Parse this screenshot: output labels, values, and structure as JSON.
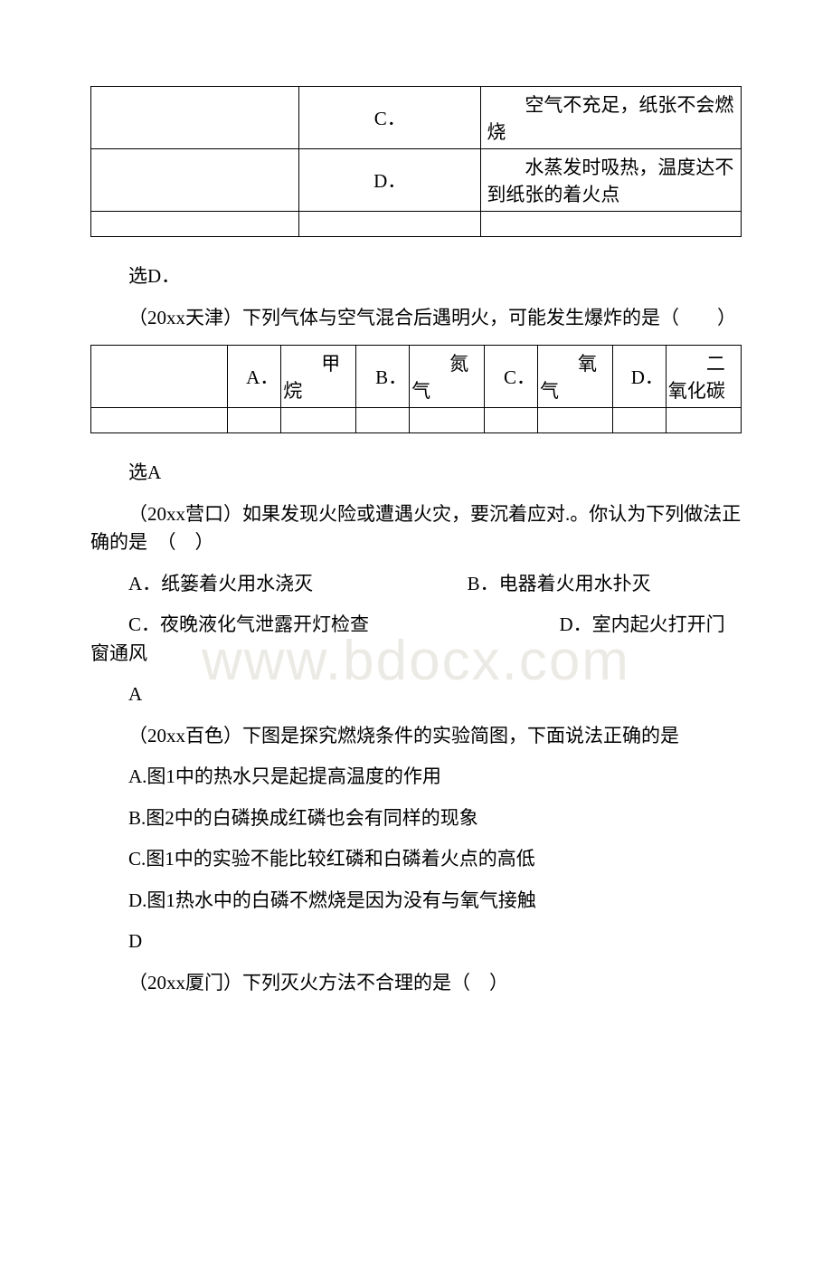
{
  "watermark": "www.bdocx.com",
  "table1": {
    "rows": [
      {
        "label": "C．",
        "text": "空气不充足，纸张不会燃烧"
      },
      {
        "label": "D．",
        "text": "水蒸发时吸热，温度达不到纸张的着火点"
      }
    ]
  },
  "answers": {
    "a1": "选D．",
    "a2": "选A",
    "a3": "A",
    "a4": "D"
  },
  "q1": {
    "stem": "（20xx天津）下列气体与空气混合后遇明火，可能发生爆炸的是（　　）",
    "opts": {
      "A": "甲烷",
      "B": "氮气",
      "C": "氧气",
      "D": "二氧化碳"
    }
  },
  "q2": {
    "stem": "（20xx营口）如果发现火险或遭遇火灾，要沉着应对.。你认为下列做法正确的是　（　）",
    "A": "A．纸篓着火用水浇灭",
    "B": "B．电器着火用水扑灭",
    "C": "C．夜晚液化气泄露开灯检查",
    "D": "D．室内起火打开门窗通风"
  },
  "q3": {
    "stem": "（20xx百色）下图是探究燃烧条件的实验简图，下面说法正确的是",
    "A": "A.图1中的热水只是起提高温度的作用",
    "B": "B.图2中的白磷换成红磷也会有同样的现象",
    "C": "C.图1中的实验不能比较红磷和白磷着火点的高低",
    "D": "D.图1热水中的白磷不燃烧是因为没有与氧气接触"
  },
  "q4": {
    "stem": "（20xx厦门）下列灭火方法不合理的是（　）"
  }
}
